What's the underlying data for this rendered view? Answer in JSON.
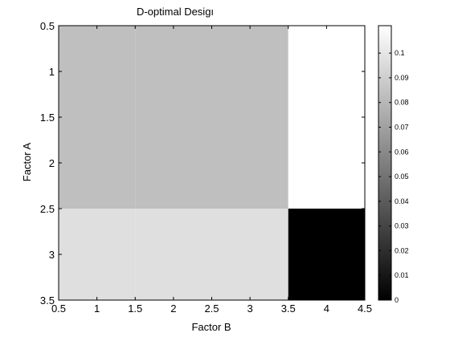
{
  "chart_data": {
    "type": "heatmap",
    "title": "D-optimal Desigı",
    "xlabel": "Factor B",
    "ylabel": "Factor A",
    "x_categories": [
      1,
      2,
      3,
      4
    ],
    "y_categories": [
      1,
      2,
      3
    ],
    "xlim": [
      0.5,
      4.5
    ],
    "ylim": [
      0.5,
      3.5
    ],
    "y_reversed": true,
    "x_ticks": [
      "0.5",
      "1",
      "1.5",
      "2",
      "2.5",
      "3",
      "3.5",
      "4",
      "4.5"
    ],
    "y_ticks": [
      "0.5",
      "1",
      "1.5",
      "2",
      "2.5",
      "3",
      "3.5"
    ],
    "values": [
      [
        0.0833,
        0.0833,
        0.0833,
        0.1111
      ],
      [
        0.0833,
        0.0833,
        0.0833,
        0.1111
      ],
      [
        0.0972,
        0.0972,
        0.0972,
        0.0
      ]
    ],
    "colormap": "gray",
    "clim": [
      0,
      0.1111
    ],
    "colorbar": {
      "ticks": [
        "0",
        "0.01",
        "0.02",
        "0.03",
        "0.04",
        "0.05",
        "0.06",
        "0.07",
        "0.08",
        "0.09",
        "0.1"
      ],
      "tick_values": [
        0,
        0.01,
        0.02,
        0.03,
        0.04,
        0.05,
        0.06,
        0.07,
        0.08,
        0.09,
        0.1
      ]
    },
    "grid": false,
    "legend": "none"
  }
}
